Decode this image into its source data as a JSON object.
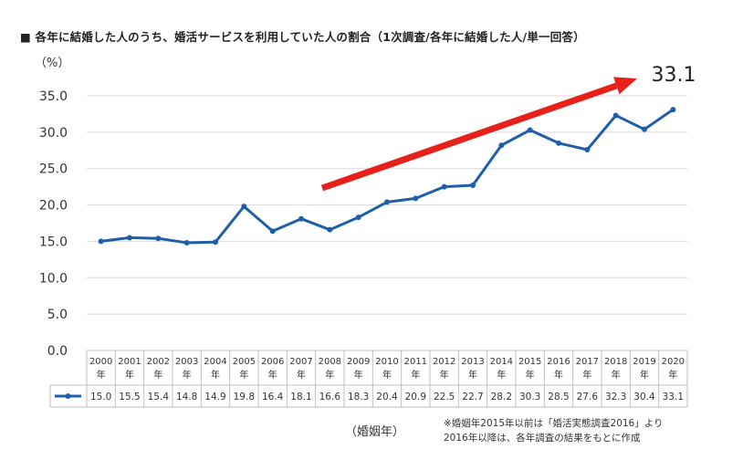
{
  "title": "■ 各年に結婚した人のうち、婚活サービスを利用していた人の割合（1次調査/各年に結婚した人/単一回答）",
  "note_lines": [
    "※婚姻年2015年以前は「婚活実態調査2016」より",
    "2016年以降は、各年調査の結果をもとに作成"
  ],
  "colors": {
    "line": "#1f5fa8",
    "arrow": "#e8201a",
    "grid": "#d9d9d9"
  },
  "chart_data": {
    "type": "line",
    "categories": [
      "2000",
      "2001",
      "2002",
      "2003",
      "2004",
      "2005",
      "2006",
      "2007",
      "2008",
      "2009",
      "2010",
      "2011",
      "2012",
      "2013",
      "2014",
      "2015",
      "2016",
      "2017",
      "2018",
      "2019",
      "2020"
    ],
    "category_suffix": "年",
    "series": [
      {
        "values": [
          15.0,
          15.5,
          15.4,
          14.8,
          14.9,
          19.8,
          16.4,
          18.1,
          16.6,
          18.3,
          20.4,
          20.9,
          22.5,
          22.7,
          28.2,
          30.3,
          28.5,
          27.6,
          32.3,
          30.4,
          33.1
        ]
      }
    ],
    "value_labels": [
      "15.0",
      "15.5",
      "15.4",
      "14.8",
      "14.9",
      "19.8",
      "16.4",
      "18.1",
      "16.6",
      "18.3",
      "20.4",
      "20.9",
      "22.5",
      "22.7",
      "28.2",
      "30.3",
      "28.5",
      "27.6",
      "32.3",
      "30.4",
      "33.1"
    ],
    "yticks": [
      "0.0",
      "5.0",
      "10.0",
      "15.0",
      "20.0",
      "25.0",
      "30.0",
      "35.0"
    ],
    "ylim": [
      0,
      35
    ],
    "ylabel": "（%）",
    "xlabel": "（婚姻年）",
    "annotation": "33.1",
    "grid": true,
    "data_table": true
  }
}
